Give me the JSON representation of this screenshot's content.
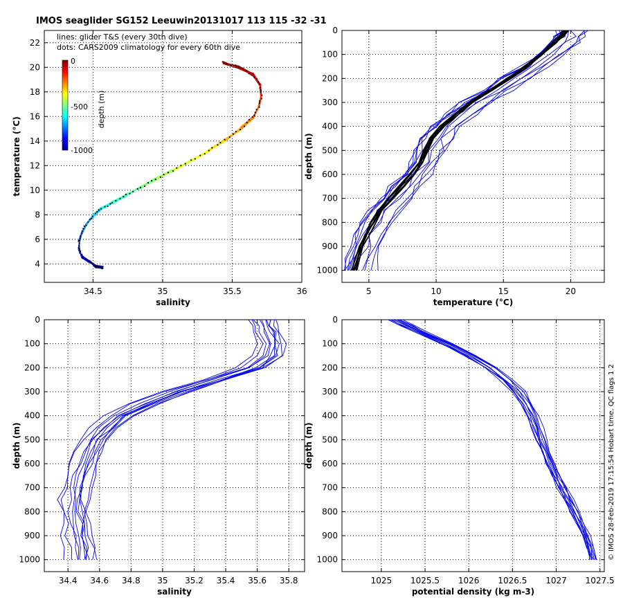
{
  "title": "IMOS seaglider SG152 Leeuwin20131017 113  115  -32  -31",
  "footer": "© IMOS 28-Feb-2019 17:15:54 Hobart time. QC flags 1  2",
  "colors": {
    "line": "#0000ee",
    "climatology": "#000000",
    "axes": "#000000",
    "background": "#ffffff"
  },
  "chart_data": [
    {
      "type": "line",
      "id": "ts",
      "title": "",
      "xlabel": "salinity",
      "ylabel": "temperature (°C)",
      "xlim": [
        34.15,
        36
      ],
      "ylim": [
        2.5,
        23
      ],
      "xticks": [
        34.5,
        35,
        35.5,
        36
      ],
      "xticklabels": [
        "34.5",
        "35",
        "35.5",
        "36"
      ],
      "yticks": [
        4,
        6,
        8,
        10,
        12,
        14,
        16,
        18,
        20,
        22
      ],
      "yticklabels": [
        "4",
        "6",
        "8",
        "10",
        "12",
        "14",
        "16",
        "18",
        "20",
        "22"
      ],
      "grid": true,
      "legend": {
        "placement": "top-left",
        "entries": [
          "lines: glider T&S (every 30th dive)",
          "dots: CARS2009 climatology for every 60th dive"
        ]
      },
      "colorbar": {
        "label": "depth (m)",
        "ticks": [
          "0",
          "-500",
          "-1000"
        ],
        "range": [
          -1000,
          0
        ],
        "colormap": "jet"
      },
      "profile": {
        "salinity": [
          34.57,
          34.52,
          34.47,
          34.42,
          34.4,
          34.4,
          34.42,
          34.45,
          34.5,
          34.56,
          34.64,
          34.74,
          34.84,
          34.95,
          35.07,
          35.2,
          35.33,
          35.45,
          35.56,
          35.65,
          35.69,
          35.71,
          35.7,
          35.65,
          35.55,
          35.43
        ],
        "temperature": [
          3.7,
          3.8,
          4.2,
          4.6,
          5.2,
          5.8,
          6.5,
          7.2,
          7.9,
          8.5,
          9.0,
          9.6,
          10.2,
          10.9,
          11.6,
          12.4,
          13.2,
          14.1,
          15.0,
          15.9,
          16.8,
          17.7,
          18.6,
          19.4,
          20.0,
          20.4
        ],
        "depth": [
          1000,
          960,
          920,
          880,
          840,
          800,
          760,
          720,
          680,
          640,
          600,
          560,
          520,
          480,
          440,
          400,
          360,
          320,
          280,
          240,
          200,
          160,
          120,
          80,
          40,
          5
        ]
      }
    },
    {
      "type": "line",
      "id": "temp_depth",
      "title": "",
      "xlabel": "temperature (°C)",
      "ylabel": "depth (m)",
      "xlim": [
        3,
        22.5
      ],
      "ylim": [
        1050,
        0
      ],
      "xticks": [
        5,
        10,
        15,
        20
      ],
      "xticklabels": [
        "5",
        "10",
        "15",
        "20"
      ],
      "yticks": [
        0,
        100,
        200,
        300,
        400,
        500,
        600,
        700,
        800,
        900,
        1000
      ],
      "yticklabels": [
        "0",
        "100",
        "200",
        "300",
        "400",
        "500",
        "600",
        "700",
        "800",
        "900",
        "1000"
      ],
      "grid": true,
      "depth": [
        0,
        25,
        50,
        100,
        150,
        200,
        250,
        300,
        350,
        400,
        450,
        500,
        550,
        600,
        650,
        700,
        750,
        800,
        850,
        900,
        950,
        1000
      ],
      "climatology": {
        "x": [
          19.8,
          19.4,
          19.0,
          18.0,
          16.9,
          15.6,
          14.2,
          12.8,
          11.6,
          10.6,
          9.9,
          9.4,
          9.0,
          8.4,
          7.6,
          6.8,
          6.1,
          5.5,
          5.0,
          4.6,
          4.3,
          4.1
        ]
      },
      "glider": {
        "x": [
          20.0,
          19.8,
          19.4,
          18.3,
          17.2,
          15.8,
          14.4,
          12.9,
          11.7,
          10.6,
          9.9,
          9.5,
          9.0,
          8.4,
          7.6,
          6.8,
          6.1,
          5.5,
          5.0,
          4.6,
          4.3,
          4.1
        ]
      }
    },
    {
      "type": "line",
      "id": "sal_depth",
      "title": "",
      "xlabel": "salinity",
      "ylabel": "depth (m)",
      "xlim": [
        34.25,
        35.9
      ],
      "ylim": [
        1050,
        0
      ],
      "xticks": [
        34.4,
        34.6,
        34.8,
        35,
        35.2,
        35.4,
        35.6,
        35.8
      ],
      "xticklabels": [
        "34.4",
        "34.6",
        "34.8",
        "35",
        "35.2",
        "35.4",
        "35.6",
        "35.8"
      ],
      "yticks": [
        0,
        100,
        200,
        300,
        400,
        500,
        600,
        700,
        800,
        900,
        1000
      ],
      "yticklabels": [
        "0",
        "100",
        "200",
        "300",
        "400",
        "500",
        "600",
        "700",
        "800",
        "900",
        "1000"
      ],
      "grid": true,
      "depth": [
        0,
        25,
        50,
        100,
        150,
        200,
        250,
        300,
        350,
        400,
        450,
        500,
        550,
        600,
        650,
        700,
        750,
        800,
        850,
        900,
        950,
        1000
      ],
      "glider": {
        "x": [
          35.62,
          35.64,
          35.66,
          35.68,
          35.66,
          35.57,
          35.33,
          35.08,
          34.88,
          34.73,
          34.63,
          34.56,
          34.52,
          34.49,
          34.47,
          34.45,
          34.44,
          34.44,
          34.45,
          34.46,
          34.47,
          34.48
        ]
      }
    },
    {
      "type": "line",
      "id": "dens_depth",
      "title": "",
      "xlabel": "potential density (kg m-3)",
      "ylabel": "depth (m)",
      "xlim": [
        1024.55,
        1027.55
      ],
      "ylim": [
        1050,
        0
      ],
      "xticks": [
        1025,
        1025.5,
        1026,
        1026.5,
        1027,
        1027.5
      ],
      "xticklabels": [
        "1025",
        "1025.5",
        "1026",
        "1026.5",
        "1027",
        "1027.5"
      ],
      "yticks": [
        0,
        100,
        200,
        300,
        400,
        500,
        600,
        700,
        800,
        900,
        1000
      ],
      "yticklabels": [
        "0",
        "100",
        "200",
        "300",
        "400",
        "500",
        "600",
        "700",
        "800",
        "900",
        "1000"
      ],
      "grid": true,
      "depth": [
        0,
        25,
        50,
        100,
        150,
        200,
        250,
        300,
        350,
        400,
        450,
        500,
        550,
        600,
        650,
        700,
        750,
        800,
        850,
        900,
        950,
        1000
      ],
      "glider": {
        "x": [
          1025.15,
          1025.3,
          1025.45,
          1025.75,
          1026.02,
          1026.25,
          1026.43,
          1026.57,
          1026.66,
          1026.73,
          1026.78,
          1026.83,
          1026.88,
          1026.94,
          1027.0,
          1027.07,
          1027.14,
          1027.21,
          1027.28,
          1027.34,
          1027.39,
          1027.42
        ]
      }
    }
  ]
}
